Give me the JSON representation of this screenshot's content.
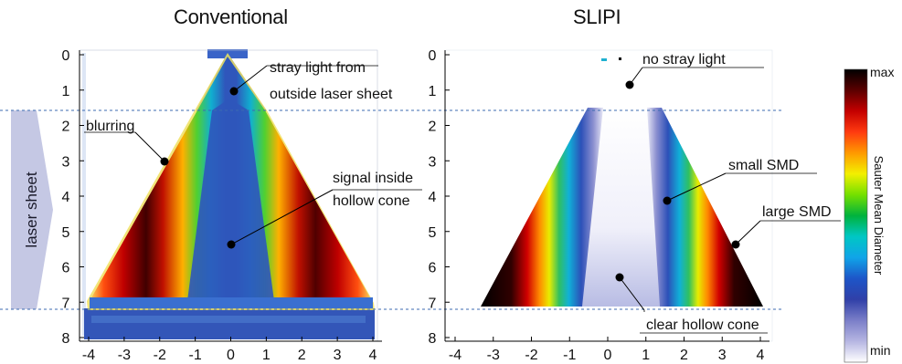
{
  "panels": [
    {
      "title": "Conventional",
      "annotations": [
        {
          "text": [
            "stray light from",
            "outside laser sheet"
          ]
        },
        {
          "text": [
            "blurring"
          ]
        },
        {
          "text": [
            "signal inside",
            "hollow cone"
          ]
        }
      ]
    },
    {
      "title": "SLIPI",
      "annotations": [
        {
          "text": [
            "no stray light"
          ]
        },
        {
          "text": [
            "small SMD"
          ]
        },
        {
          "text": [
            "large SMD"
          ]
        },
        {
          "text": [
            "clear hollow cone"
          ]
        }
      ]
    }
  ],
  "laser_label": "laser sheet",
  "x_ticks": [
    "-4",
    "-3",
    "-2",
    "-1",
    "0",
    "1",
    "2",
    "3",
    "4"
  ],
  "y_ticks": [
    "0",
    "1",
    "2",
    "3",
    "4",
    "5",
    "6",
    "7",
    "8"
  ],
  "colorbar": {
    "label": "Sauter Mean Diameter",
    "max": "max",
    "min": "min",
    "stops": [
      "#000000",
      "#5a0000",
      "#c40000",
      "#ff3a10",
      "#ff9a00",
      "#f3f000",
      "#73e000",
      "#00b23d",
      "#00c7c4",
      "#10a4e8",
      "#1d55c8",
      "#3040a8",
      "#7a7ec8",
      "#b6b6e2",
      "#ffffff"
    ]
  },
  "colors": {
    "laser_arrow": "#c5c8e4",
    "guide_line": "#3c6bb0",
    "plot_bg_conventional": "#2e50b4"
  }
}
